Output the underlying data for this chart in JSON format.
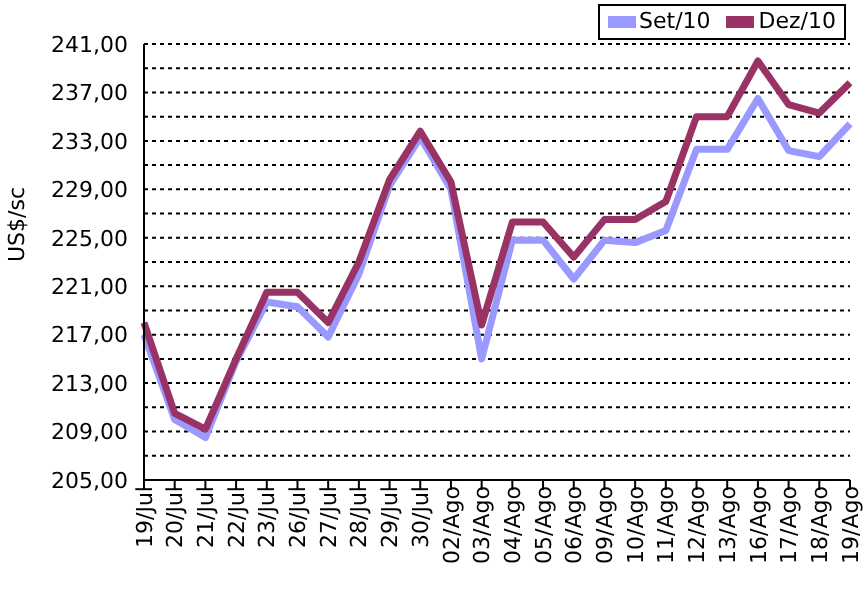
{
  "chart_data": {
    "type": "line",
    "ylabel": "US$/sc",
    "categories": [
      "19/Jul",
      "20/Jul",
      "21/Jul",
      "22/Jul",
      "23/Jul",
      "26/Jul",
      "27/Jul",
      "28/Jul",
      "29/Jul",
      "30/Jul",
      "02/Ago",
      "03/Ago",
      "04/Ago",
      "05/Ago",
      "06/Ago",
      "09/Ago",
      "10/Ago",
      "11/Ago",
      "12/Ago",
      "13/Ago",
      "16/Ago",
      "17/Ago",
      "18/Ago",
      "19/Ago"
    ],
    "series": [
      {
        "name": "Set/10",
        "color": "#9999ff",
        "values": [
          217,
          210,
          208.5,
          214.8,
          219.7,
          219.3,
          216.8,
          222,
          229.3,
          233.3,
          229,
          215,
          224.8,
          224.8,
          221.6,
          224.8,
          224.6,
          225.6,
          232.3,
          232.3,
          236.5,
          232.2,
          231.7,
          234.4
        ]
      },
      {
        "name": "Dez/10",
        "color": "#993366",
        "values": [
          218,
          210.5,
          209.2,
          215,
          220.5,
          220.5,
          218,
          223,
          229.8,
          233.8,
          229.6,
          217.8,
          226.3,
          226.3,
          223.4,
          226.5,
          226.5,
          228,
          235,
          235,
          239.6,
          236,
          235.3,
          237.8
        ]
      }
    ],
    "ylim": [
      205,
      241
    ],
    "yticks": [
      {
        "value": 205,
        "label": "205,00"
      },
      {
        "value": 207,
        "label": null
      },
      {
        "value": 209,
        "label": "209,00"
      },
      {
        "value": 211,
        "label": null
      },
      {
        "value": 213,
        "label": "213,00"
      },
      {
        "value": 215,
        "label": null
      },
      {
        "value": 217,
        "label": "217,00"
      },
      {
        "value": 219,
        "label": null
      },
      {
        "value": 221,
        "label": "221,00"
      },
      {
        "value": 223,
        "label": null
      },
      {
        "value": 225,
        "label": "225,00"
      },
      {
        "value": 227,
        "label": null
      },
      {
        "value": 229,
        "label": "229,00"
      },
      {
        "value": 231,
        "label": null
      },
      {
        "value": 233,
        "label": "233,00"
      },
      {
        "value": 235,
        "label": null
      },
      {
        "value": 237,
        "label": "237,00"
      },
      {
        "value": 239,
        "label": null
      },
      {
        "value": 241,
        "label": "241,00"
      }
    ],
    "grid": "y",
    "legend": "top right",
    "marker": "none",
    "line_style": "solid"
  }
}
